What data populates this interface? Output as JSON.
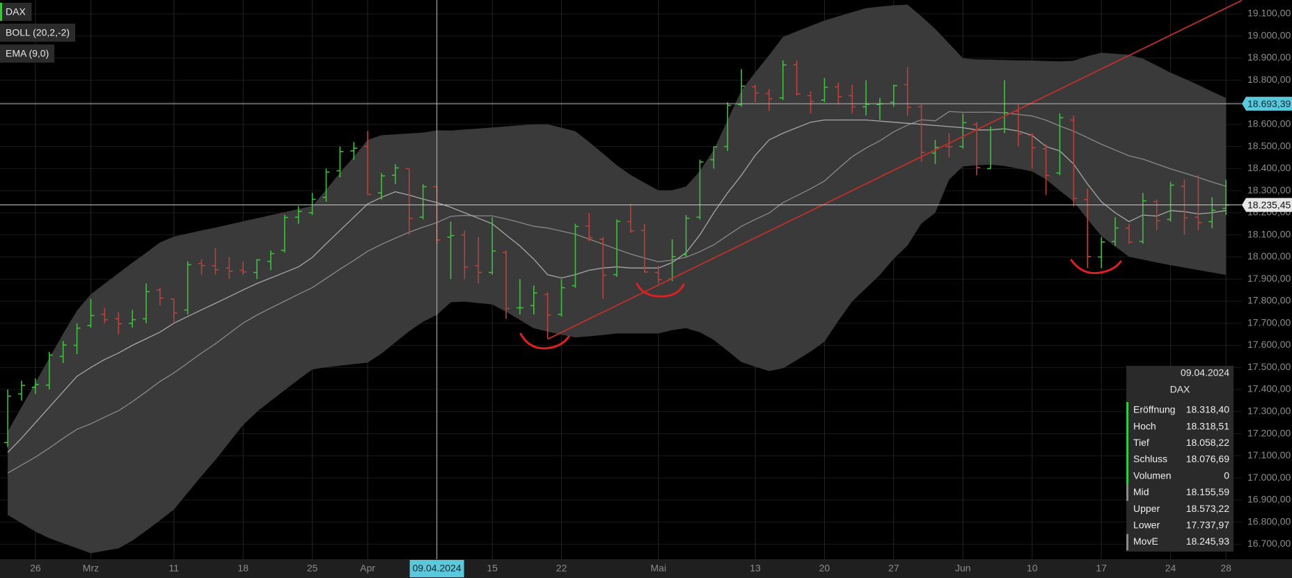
{
  "chart_data": {
    "type": "ohlc",
    "categories": [
      null,
      null,
      "26",
      null,
      null,
      null,
      "Mrz",
      null,
      null,
      null,
      null,
      null,
      "11",
      null,
      null,
      null,
      null,
      "18",
      null,
      null,
      null,
      null,
      "25",
      null,
      null,
      null,
      "Apr",
      null,
      null,
      null,
      null,
      null,
      null,
      null,
      null,
      "15",
      null,
      null,
      null,
      null,
      "22",
      null,
      null,
      null,
      null,
      null,
      null,
      "Mai",
      null,
      null,
      null,
      null,
      null,
      null,
      "13",
      null,
      null,
      null,
      null,
      "20",
      null,
      null,
      null,
      null,
      "27",
      null,
      null,
      null,
      null,
      "Jun",
      null,
      null,
      null,
      null,
      "10",
      null,
      null,
      null,
      null,
      "17",
      null,
      null,
      null,
      null,
      "24",
      null,
      null,
      null,
      "28"
    ],
    "ylim": [
      16632,
      19163
    ],
    "yticks": [
      {
        "value": 16700,
        "label": "16.700,00"
      },
      {
        "value": 16800,
        "label": "16.800,00"
      },
      {
        "value": 16900,
        "label": "16.900,00"
      },
      {
        "value": 17000,
        "label": "17.000,00"
      },
      {
        "value": 17100,
        "label": "17.100,00"
      },
      {
        "value": 17200,
        "label": "17.200,00"
      },
      {
        "value": 17300,
        "label": "17.300,00"
      },
      {
        "value": 17400,
        "label": "17.400,00"
      },
      {
        "value": 17500,
        "label": "17.500,00"
      },
      {
        "value": 17600,
        "label": "17.600,00"
      },
      {
        "value": 17700,
        "label": "17.700,00"
      },
      {
        "value": 17800,
        "label": "17.800,00"
      },
      {
        "value": 17900,
        "label": "17.900,00"
      },
      {
        "value": 18000,
        "label": "18.000,00"
      },
      {
        "value": 18100,
        "label": "18.100,00"
      },
      {
        "value": 18200,
        "label": "18.200,00"
      },
      {
        "value": 18300,
        "label": "18.300,00"
      },
      {
        "value": 18400,
        "label": "18.400,00"
      },
      {
        "value": 18500,
        "label": "18.500,00"
      },
      {
        "value": 18600,
        "label": "18.600,00"
      },
      {
        "value": 18700,
        "label": "18.700,00"
      },
      {
        "value": 18800,
        "label": "18.800,00"
      },
      {
        "value": 18900,
        "label": "18.900,00"
      },
      {
        "value": 19000,
        "label": "19.000,00"
      },
      {
        "value": 19100,
        "label": "19.100,00"
      }
    ],
    "grid": true,
    "series": [
      {
        "name": "DAX",
        "type": "ohlc",
        "up_color": "#3fbf3f",
        "down_color": "#b8423e",
        "open": [
          17160,
          17380,
          17410,
          17420,
          17550,
          17600,
          17690,
          17740,
          17720,
          17700,
          17720,
          17850,
          17810,
          17760,
          17970,
          17960,
          17950,
          17940,
          17930,
          17980,
          18030,
          18180,
          18200,
          18270,
          18390,
          18480,
          18500,
          18290,
          18370,
          18400,
          18180,
          18318.4,
          18090,
          18100,
          17960,
          17930,
          18020,
          17770,
          17780,
          17830,
          17740,
          17870,
          18140,
          18080,
          17920,
          18160,
          18120,
          17930,
          17900,
          18010,
          18180,
          18440,
          18500,
          18690,
          18770,
          18740,
          18720,
          18870,
          18730,
          18710,
          18770,
          18730,
          18680,
          18690,
          18700,
          18780,
          18680,
          18470,
          18500,
          18500,
          18600,
          18400,
          18580,
          18660,
          18550,
          18490,
          18380,
          18620,
          18260,
          18000,
          18070,
          18130,
          18070,
          18250,
          18170,
          18320,
          18180,
          18160,
          18220
        ],
        "high": [
          17400,
          17440,
          17450,
          17570,
          17620,
          17700,
          17810,
          17770,
          17750,
          17760,
          17880,
          17860,
          17810,
          17980,
          17990,
          18040,
          18000,
          17980,
          17990,
          18030,
          18190,
          18230,
          18290,
          18400,
          18500,
          18520,
          18570,
          18380,
          18420,
          18400,
          18330,
          18318.51,
          18160,
          18120,
          18090,
          18180,
          18030,
          17900,
          17870,
          17840,
          17900,
          18150,
          18200,
          18090,
          18170,
          18240,
          18150,
          17960,
          18080,
          18190,
          18440,
          18500,
          18700,
          18850,
          18780,
          18760,
          18890,
          18890,
          18750,
          18810,
          18790,
          18780,
          18800,
          18720,
          18780,
          18860,
          18690,
          18530,
          18560,
          18650,
          18610,
          18590,
          18800,
          18690,
          18560,
          18510,
          18650,
          18640,
          18310,
          18090,
          18180,
          18150,
          18290,
          18260,
          18340,
          18350,
          18370,
          18270,
          18350
        ],
        "low": [
          17140,
          17350,
          17380,
          17400,
          17520,
          17560,
          17680,
          17700,
          17650,
          17680,
          17700,
          17780,
          17700,
          17740,
          17920,
          17920,
          17900,
          17920,
          17900,
          17940,
          18020,
          18150,
          18190,
          18250,
          18360,
          18440,
          18280,
          18260,
          18330,
          18100,
          18170,
          18058.22,
          17900,
          17900,
          17880,
          17920,
          17720,
          17740,
          17740,
          17630,
          17730,
          17860,
          18070,
          17810,
          17910,
          18110,
          17930,
          17880,
          17890,
          18000,
          18170,
          18400,
          18480,
          18680,
          18700,
          18660,
          18710,
          18730,
          18650,
          18700,
          18690,
          18650,
          18640,
          18620,
          18680,
          18640,
          18430,
          18420,
          18450,
          18490,
          18370,
          18400,
          18560,
          18500,
          18400,
          18280,
          18370,
          18230,
          17950,
          17950,
          18050,
          18060,
          18060,
          18120,
          18160,
          18100,
          18120,
          18130,
          18190
        ],
        "close": [
          17370,
          17419,
          17423,
          17556,
          17601,
          17678,
          17735,
          17716,
          17698,
          17716,
          17843,
          17814,
          17746,
          17965,
          17961,
          17942,
          17936,
          17932,
          17987,
          18015,
          18179,
          18206,
          18261,
          18384,
          18477,
          18492,
          18283,
          18367,
          18403,
          18175,
          18318,
          18076.69,
          18097,
          17954,
          17930,
          18027,
          17767,
          17770,
          17837,
          17737,
          17861,
          18138,
          18088,
          17917,
          18161,
          18118,
          17932,
          17897,
          18001,
          18175,
          18430,
          18498,
          18686,
          18773,
          18742,
          18716,
          18869,
          18738,
          18704,
          18768,
          18726,
          18680,
          18691,
          18693,
          18775,
          18677,
          18473,
          18496,
          18498,
          18608,
          18405,
          18576,
          18653,
          18557,
          18494,
          18369,
          18630,
          18265,
          18002,
          18068,
          18131,
          18067,
          18254,
          18164,
          18325,
          18177,
          18155,
          18211,
          18235.45
        ]
      },
      {
        "name": "BOLL (20,2,-2)",
        "type": "bollinger",
        "color": "#3a3a3a",
        "mid_color": "#8a8a8a",
        "upper": [
          17210,
          17321,
          17431,
          17542,
          17653,
          17757,
          17831,
          17879,
          17926,
          17974,
          18019,
          18066,
          18092,
          18106,
          18120,
          18133,
          18147,
          18161,
          18175,
          18189,
          18203,
          18217,
          18231,
          18304,
          18381,
          18453,
          18530,
          18551,
          18555,
          18559,
          18563,
          18573.22,
          18572,
          18577,
          18581,
          18586,
          18591,
          18596,
          18600,
          18600,
          18585,
          18569,
          18520,
          18468,
          18415,
          18371,
          18336,
          18301,
          18302,
          18319,
          18389,
          18484,
          18619,
          18753,
          18836,
          18913,
          18996,
          19021,
          19046,
          19070,
          19089,
          19108,
          19126,
          19133,
          19139,
          19142,
          19089,
          19032,
          18966,
          18899,
          18894,
          18893,
          18891,
          18890,
          18889,
          18887,
          18885,
          18888,
          18909,
          18924,
          18920,
          18915,
          18898,
          18866,
          18834,
          18807,
          18779,
          18748,
          18720
        ],
        "mid": [
          17022,
          17058,
          17094,
          17135,
          17179,
          17220,
          17245,
          17275,
          17304,
          17345,
          17390,
          17437,
          17475,
          17520,
          17565,
          17607,
          17654,
          17701,
          17737,
          17769,
          17800,
          17831,
          17861,
          17903,
          17945,
          17984,
          18026,
          18057,
          18085,
          18112,
          18135,
          18155.59,
          18184,
          18188,
          18186,
          18186,
          18172,
          18156,
          18139,
          18131,
          18117,
          18103,
          18081,
          18058,
          18035,
          18013,
          17995,
          17978,
          17986,
          17999,
          18024,
          18055,
          18097,
          18139,
          18170,
          18199,
          18246,
          18277,
          18309,
          18344,
          18400,
          18454,
          18493,
          18526,
          18566,
          18597,
          18621,
          18616,
          18658,
          18655,
          18655,
          18656,
          18652,
          18645,
          18638,
          18619,
          18593,
          18569,
          18540,
          18510,
          18484,
          18458,
          18443,
          18421,
          18399,
          18380,
          18360,
          18339,
          18320
        ],
        "lower": [
          16833,
          16795,
          16757,
          16727,
          16704,
          16682,
          16659,
          16670,
          16681,
          16716,
          16761,
          16808,
          16857,
          16933,
          17009,
          17081,
          17161,
          17240,
          17299,
          17349,
          17397,
          17445,
          17491,
          17501,
          17508,
          17515,
          17522,
          17563,
          17614,
          17664,
          17707,
          17737.97,
          17795,
          17798,
          17791,
          17785,
          17752,
          17715,
          17677,
          17662,
          17648,
          17636,
          17641,
          17647,
          17654,
          17654,
          17654,
          17654,
          17669,
          17678,
          17659,
          17625,
          17575,
          17524,
          17503,
          17484,
          17496,
          17533,
          17572,
          17617,
          17711,
          17799,
          17859,
          17919,
          17992,
          18052,
          18152,
          18200,
          18350,
          18410,
          18415,
          18418,
          18412,
          18400,
          18387,
          18351,
          18300,
          18250,
          18170,
          18095,
          18048,
          18001,
          17988,
          17975,
          17963,
          17952,
          17941,
          17930,
          17919
        ]
      },
      {
        "name": "EMA (9,0)",
        "type": "line",
        "color": "#a8a8a8",
        "values": [
          17115,
          17180,
          17250,
          17320,
          17390,
          17460,
          17500,
          17536,
          17565,
          17600,
          17630,
          17660,
          17700,
          17731,
          17761,
          17790,
          17820,
          17851,
          17880,
          17905,
          17930,
          17955,
          17998,
          18060,
          18120,
          18180,
          18240,
          18270,
          18295,
          18280,
          18262,
          18245.93,
          18225,
          18200,
          18175,
          18150,
          18100,
          18050,
          17990,
          17920,
          17905,
          17920,
          17940,
          17950,
          17955,
          17950,
          17950,
          17950,
          17975,
          18020,
          18100,
          18200,
          18290,
          18370,
          18460,
          18530,
          18560,
          18585,
          18610,
          18620,
          18620,
          18620,
          18620,
          18615,
          18610,
          18605,
          18600,
          18595,
          18590,
          18585,
          18575,
          18575,
          18580,
          18570,
          18550,
          18500,
          18480,
          18420,
          18330,
          18250,
          18200,
          18160,
          18190,
          18185,
          18210,
          18205,
          18195,
          18200,
          18210
        ]
      }
    ],
    "trendline": {
      "color": "#c0302b",
      "x": [
        39,
        89.2
      ],
      "y": [
        17628,
        19163
      ]
    },
    "crosshair": {
      "index": 31,
      "x_label": "09.04.2024",
      "y": {
        "value": 18693.39,
        "label": "18.693,39"
      }
    },
    "last_price": {
      "value": 18235.45,
      "label": "18.235,45"
    },
    "tooltip": {
      "date": "09.04.2024",
      "title": "DAX",
      "rows": [
        {
          "label": "Eröffnung",
          "value": "18.318,40",
          "accent": "#2ecc40"
        },
        {
          "label": "Hoch",
          "value": "18.318,51",
          "accent": "#2ecc40"
        },
        {
          "label": "Tief",
          "value": "18.058,22",
          "accent": "#2ecc40"
        },
        {
          "label": "Schluss",
          "value": "18.076,69",
          "accent": "#2ecc40"
        },
        {
          "label": "Volumen",
          "value": "0",
          "accent": "#2ecc40"
        },
        {
          "label": "Mid",
          "value": "18.155,59",
          "accent": "#8a8a8a"
        },
        {
          "label": "Upper",
          "value": "18.573,22"
        },
        {
          "label": "Lower",
          "value": "17.737,97"
        },
        {
          "label": "MovE",
          "value": "18.245,93",
          "accent": "#8a8a8a"
        }
      ]
    }
  }
}
